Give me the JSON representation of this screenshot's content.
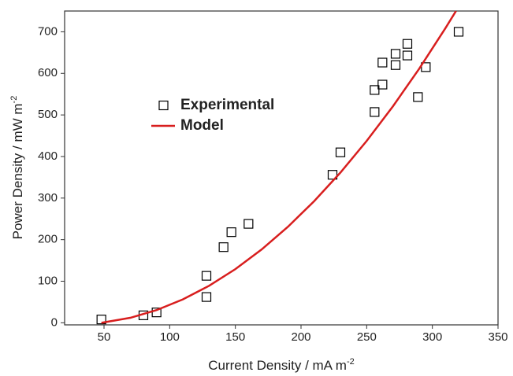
{
  "chart_data": {
    "type": "scatter-line",
    "x_label": "Current Density / mA m",
    "x_label_sup": "-2",
    "y_label": "Power Density / mW m",
    "y_label_sup": "-2",
    "xlim": [
      20,
      350
    ],
    "ylim": [
      -5,
      750
    ],
    "xticks": [
      50,
      100,
      150,
      200,
      250,
      300,
      350
    ],
    "yticks": [
      0,
      100,
      200,
      300,
      400,
      500,
      600,
      700
    ],
    "legend": "upper left",
    "series": [
      {
        "name": "Experimental",
        "type": "scatter",
        "color": "#000000",
        "x": [
          48,
          80,
          90,
          128,
          128,
          141,
          147,
          160,
          224,
          230,
          256,
          256,
          262,
          262,
          272,
          272,
          281,
          281,
          289,
          295,
          320
        ],
        "values": [
          8,
          18,
          25,
          113,
          62,
          182,
          218,
          238,
          356,
          410,
          507,
          560,
          573,
          626,
          620,
          647,
          643,
          671,
          543,
          615,
          700
        ]
      },
      {
        "name": "Model",
        "type": "line",
        "color": "#d81e1e",
        "x": [
          48,
          70,
          90,
          110,
          130,
          150,
          170,
          190,
          210,
          230,
          250,
          270,
          290,
          310,
          318
        ],
        "values": [
          0,
          12.0,
          30.5,
          56.2,
          89.0,
          129.1,
          176.4,
          230.9,
          292.6,
          361.4,
          437.5,
          520.8,
          611.3,
          709.0,
          750
        ]
      }
    ]
  }
}
